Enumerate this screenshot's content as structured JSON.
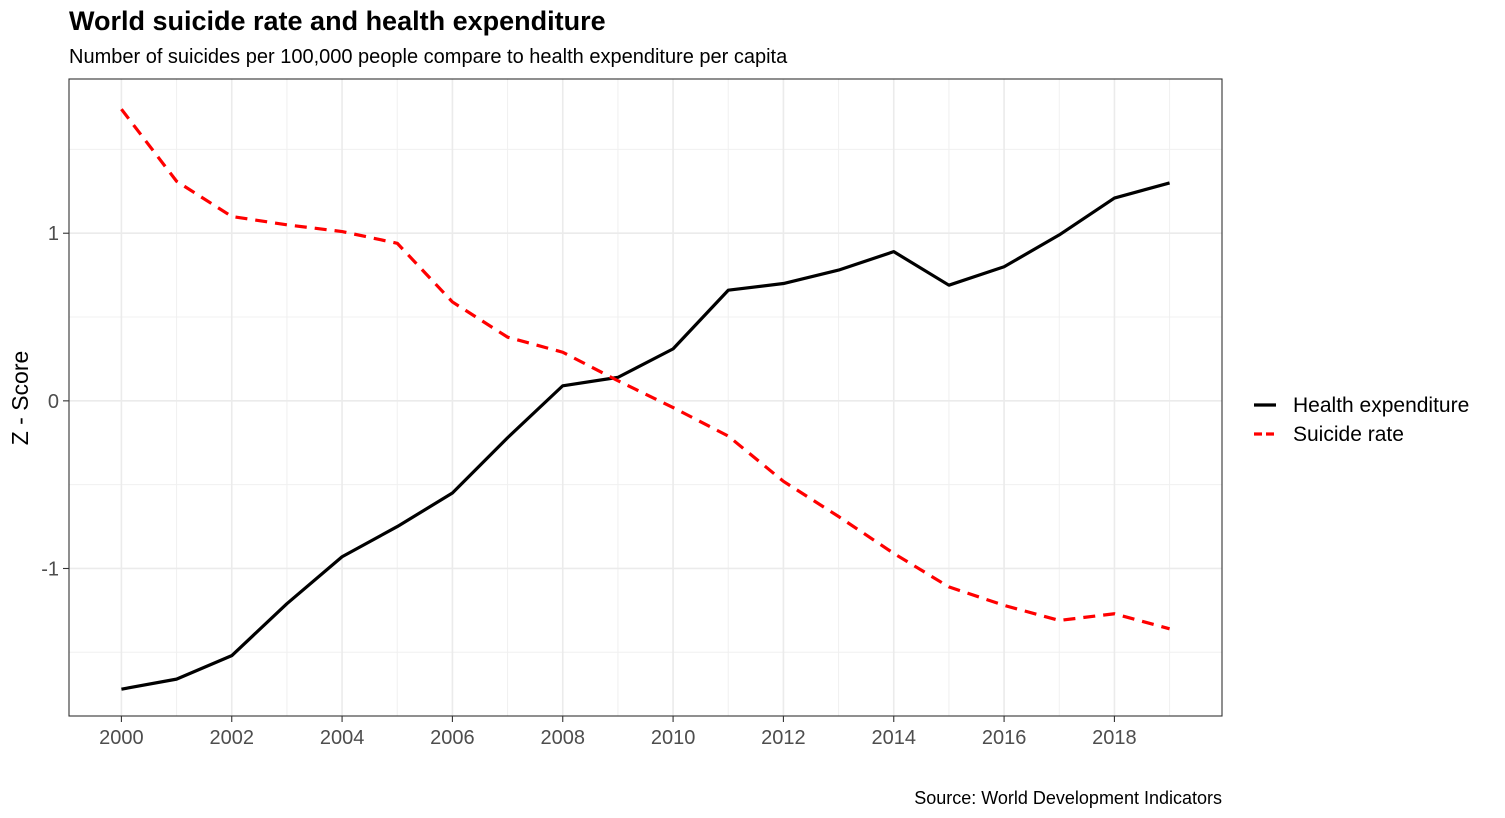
{
  "chart_data": {
    "type": "line",
    "title": "World suicide rate and health expenditure",
    "subtitle": "Number of suicides per 100,000 people compare to health expenditure per capita",
    "caption": "Source: World Development Indicators",
    "xlabel": "",
    "ylabel": "Z - Score",
    "x": [
      2000,
      2001,
      2002,
      2003,
      2004,
      2005,
      2006,
      2007,
      2008,
      2009,
      2010,
      2011,
      2012,
      2013,
      2014,
      2015,
      2016,
      2017,
      2018,
      2019
    ],
    "x_ticks": [
      "2000",
      "2002",
      "2004",
      "2006",
      "2008",
      "2010",
      "2012",
      "2014",
      "2016",
      "2018"
    ],
    "y_ticks": [
      "-1",
      "0",
      "1"
    ],
    "xlim": [
      1999.05,
      2019.95
    ],
    "ylim": [
      -1.88,
      1.92
    ],
    "grid": true,
    "legend_position": "right",
    "series": [
      {
        "name": "Health expenditure",
        "color": "#000000",
        "line_style": "solid",
        "values": [
          -1.72,
          -1.66,
          -1.52,
          -1.21,
          -0.93,
          -0.75,
          -0.55,
          -0.22,
          0.09,
          0.14,
          0.31,
          0.66,
          0.7,
          0.78,
          0.89,
          0.69,
          0.8,
          0.99,
          1.21,
          1.3
        ]
      },
      {
        "name": "Suicide rate",
        "color": "#ff0000",
        "line_style": "dashed",
        "values": [
          1.74,
          1.31,
          1.1,
          1.05,
          1.01,
          0.94,
          0.59,
          0.38,
          0.29,
          0.12,
          -0.04,
          -0.21,
          -0.48,
          -0.69,
          -0.91,
          -1.11,
          -1.22,
          -1.31,
          -1.27,
          -1.36
        ]
      }
    ]
  }
}
